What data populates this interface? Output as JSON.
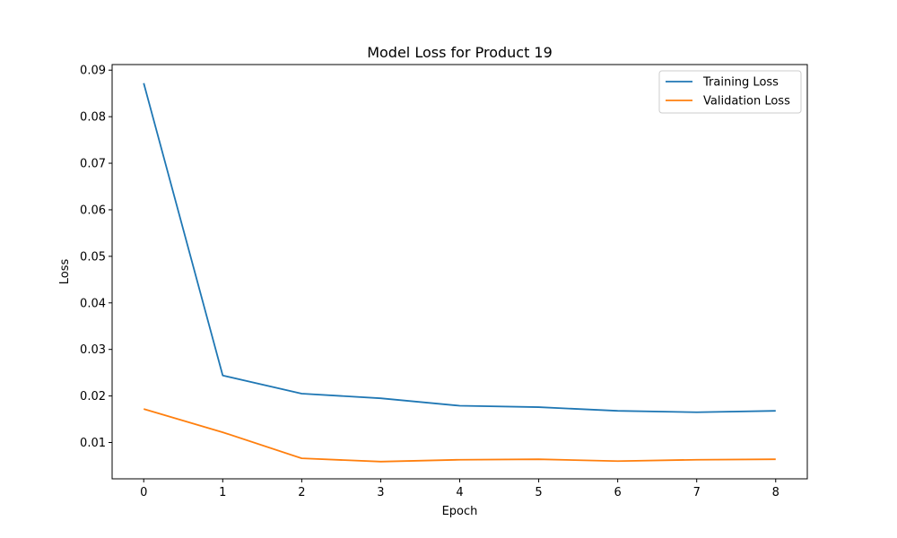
{
  "chart_data": {
    "type": "line",
    "title": "Model Loss for Product 19",
    "xlabel": "Epoch",
    "ylabel": "Loss",
    "x": [
      0,
      1,
      2,
      3,
      4,
      5,
      6,
      7,
      8
    ],
    "xlim": [
      -0.4,
      8.4
    ],
    "ylim": [
      0.0022,
      0.0912
    ],
    "xticks": [
      "0",
      "1",
      "2",
      "3",
      "4",
      "5",
      "6",
      "7",
      "8"
    ],
    "yticks": [
      0.01,
      0.02,
      0.03,
      0.04,
      0.05,
      0.06,
      0.07,
      0.08,
      0.09
    ],
    "ytick_labels": [
      "0.01",
      "0.02",
      "0.03",
      "0.04",
      "0.05",
      "0.06",
      "0.07",
      "0.08",
      "0.09"
    ],
    "grid": false,
    "legend_position": "top-right",
    "series": [
      {
        "name": "Training Loss",
        "color": "#1f77b4",
        "values": [
          0.0872,
          0.0244,
          0.0205,
          0.0195,
          0.0179,
          0.0176,
          0.0168,
          0.0165,
          0.0168
        ]
      },
      {
        "name": "Validation Loss",
        "color": "#ff7f0e",
        "values": [
          0.0172,
          0.0122,
          0.0066,
          0.0059,
          0.0063,
          0.0064,
          0.006,
          0.0063,
          0.0064
        ]
      }
    ]
  }
}
